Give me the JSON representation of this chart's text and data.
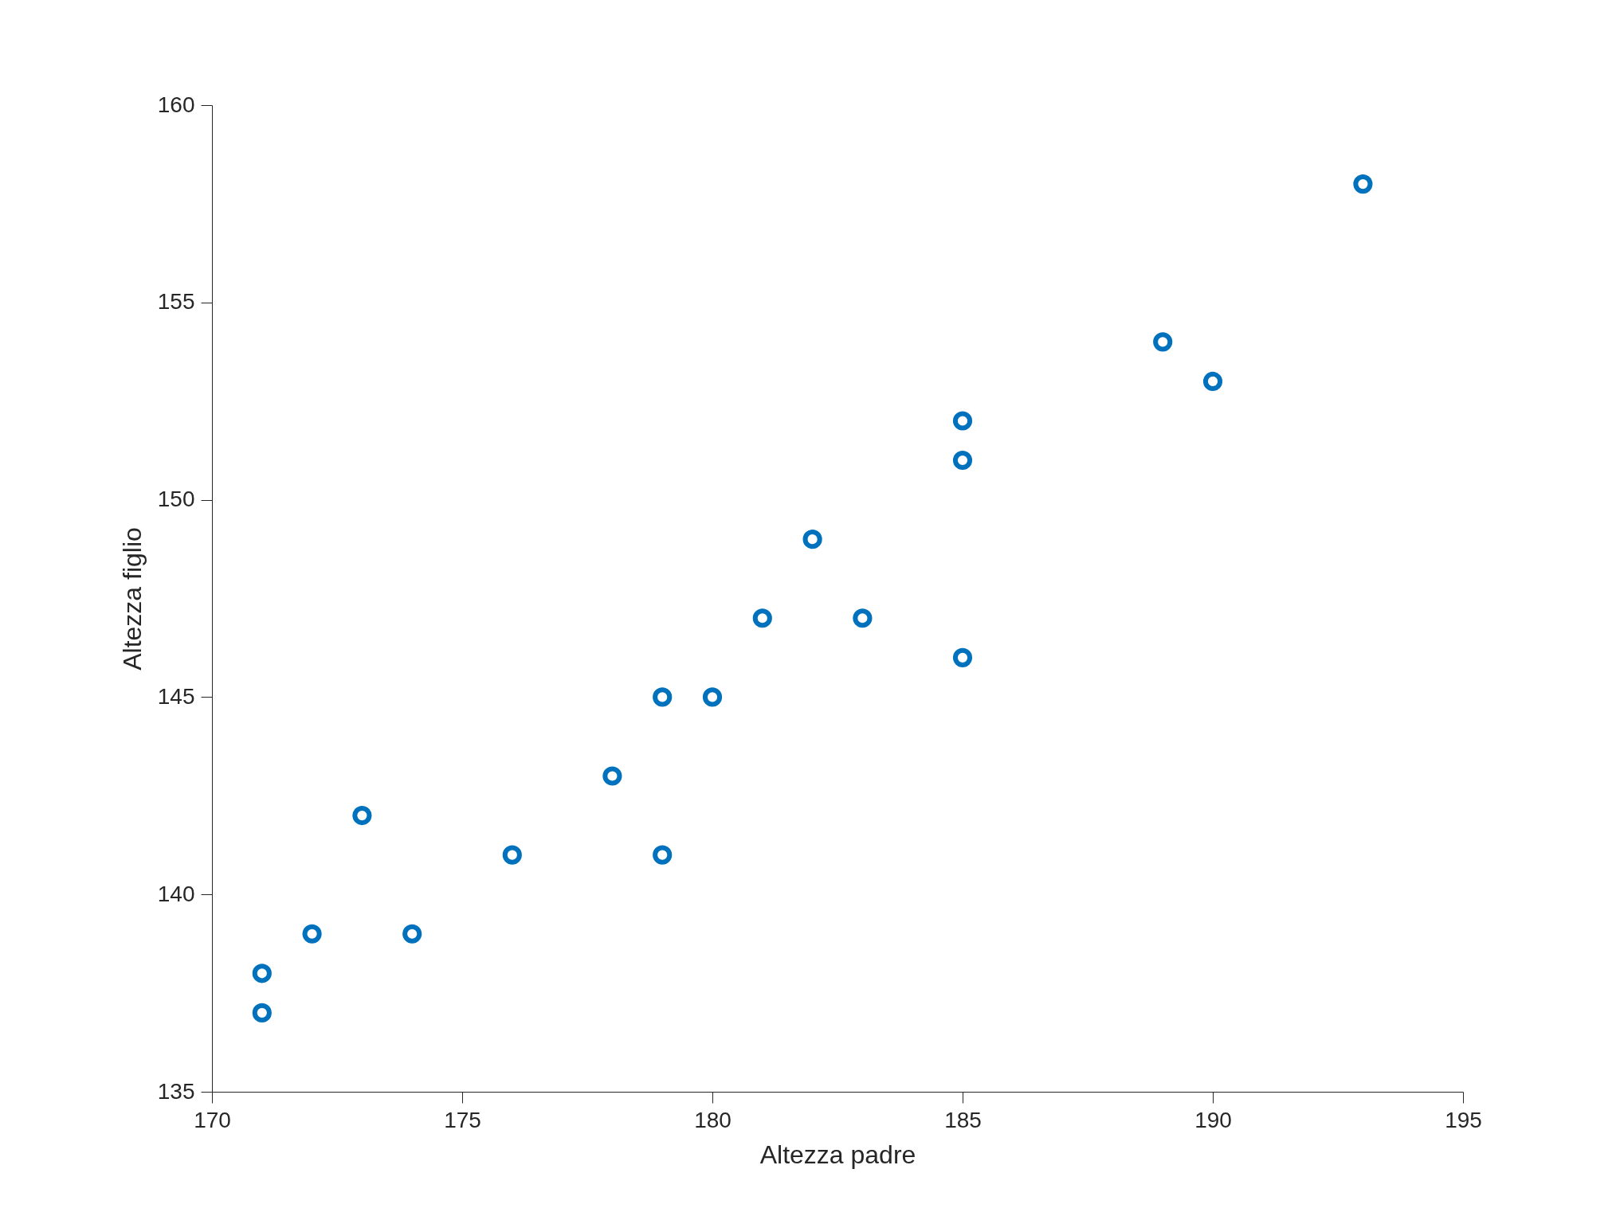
{
  "chart_data": {
    "type": "scatter",
    "xlabel": "Altezza padre",
    "ylabel": "Altezza figlio",
    "x": [
      171,
      171,
      172,
      173,
      174,
      176,
      178,
      179,
      179,
      180,
      181,
      182,
      183,
      185,
      185,
      185,
      189,
      190,
      193
    ],
    "series": [
      {
        "color": "#0072bd",
        "values": [
          138,
          137,
          139,
          142,
          139,
          141,
          143,
          145,
          141,
          145,
          147,
          149,
          147,
          152,
          151,
          146,
          154,
          153,
          158
        ]
      }
    ],
    "xlim": [
      170,
      195
    ],
    "xticks": [
      170,
      175,
      180,
      185,
      190,
      195
    ],
    "ylim": [
      135,
      160
    ],
    "yticks": [
      135,
      140,
      145,
      150,
      155,
      160
    ],
    "marker": "circle",
    "grid": false,
    "legend": false
  }
}
